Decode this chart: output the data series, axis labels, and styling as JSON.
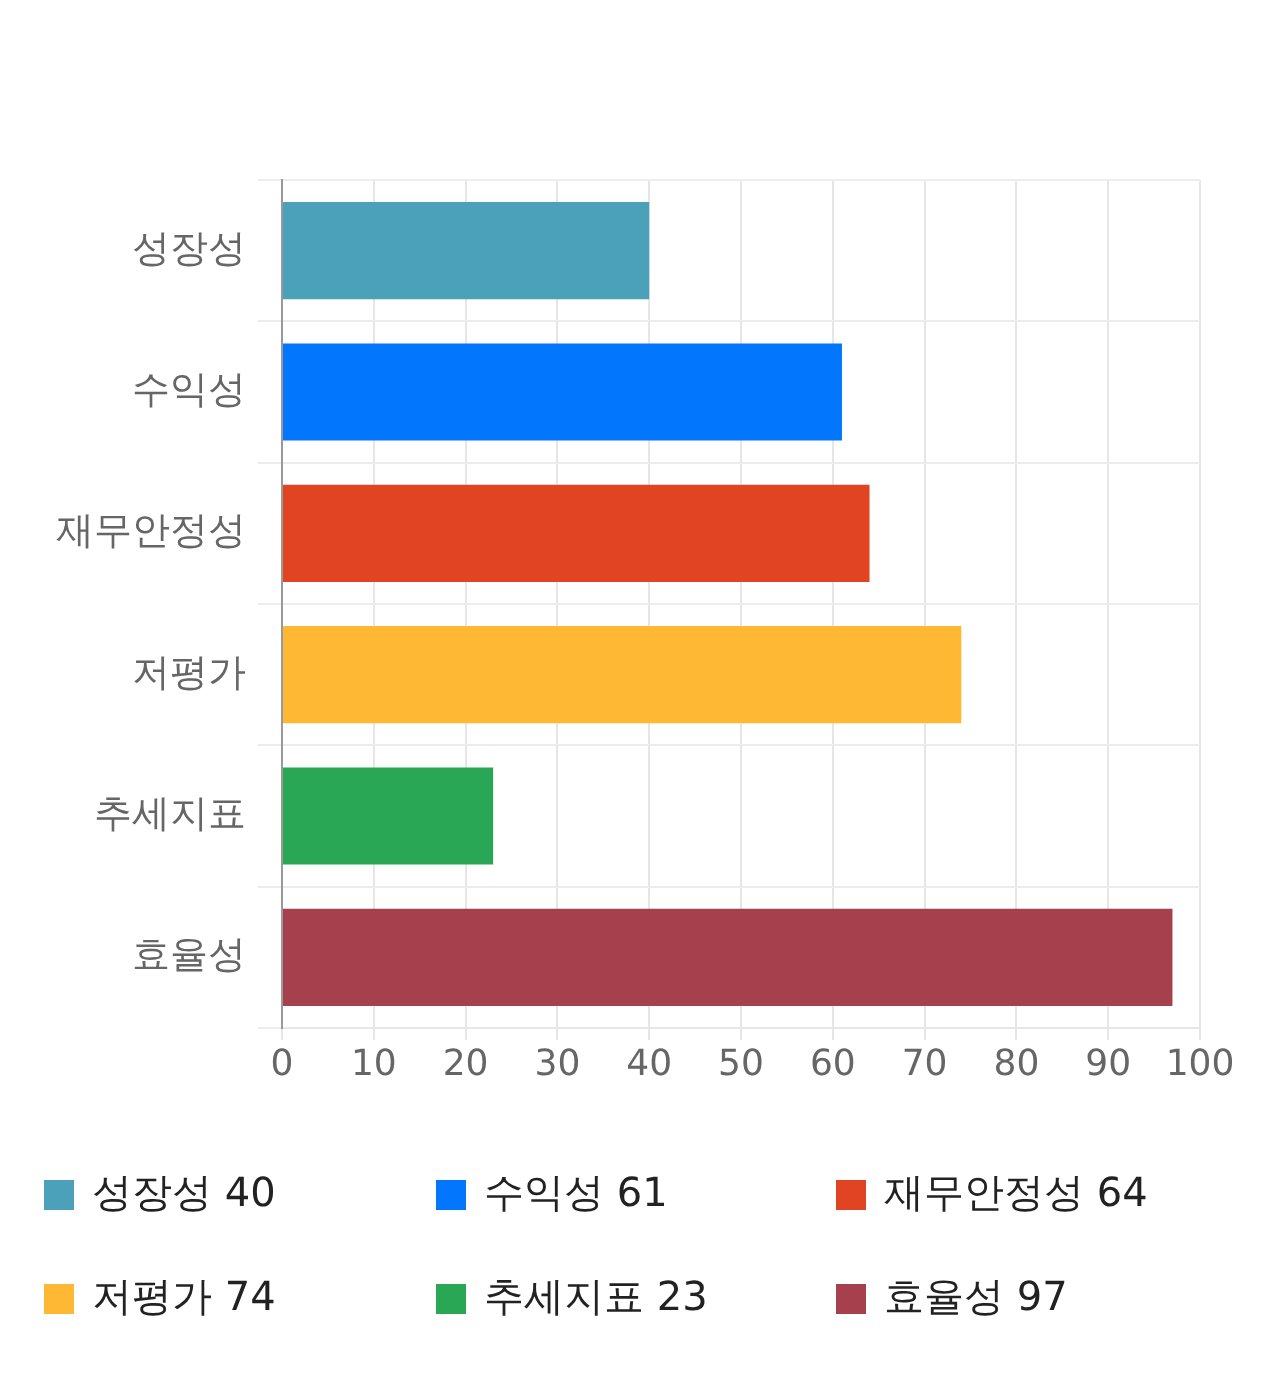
{
  "chart_data": {
    "type": "bar",
    "orientation": "horizontal",
    "categories": [
      "성장성",
      "수익성",
      "재무안정성",
      "저평가",
      "추세지표",
      "효율성"
    ],
    "series": [
      {
        "name": "성장성 40",
        "color": "#4aa1b9",
        "values": [
          40,
          null,
          null,
          null,
          null,
          null
        ]
      },
      {
        "name": "수익성 61",
        "color": "#0277fe",
        "values": [
          null,
          61,
          null,
          null,
          null,
          null
        ]
      },
      {
        "name": "재무안정성 64",
        "color": "#e14422",
        "values": [
          null,
          null,
          64,
          null,
          null,
          null
        ]
      },
      {
        "name": "저평가 74",
        "color": "#feb833",
        "values": [
          null,
          null,
          null,
          74,
          null,
          null
        ]
      },
      {
        "name": "추세지표 23",
        "color": "#29a755",
        "values": [
          null,
          null,
          null,
          null,
          23,
          null
        ]
      },
      {
        "name": "효율성 97",
        "color": "#a6404d",
        "values": [
          null,
          null,
          null,
          null,
          null,
          97
        ]
      }
    ],
    "xlim": [
      0,
      100
    ],
    "xticks": [
      0,
      10,
      20,
      30,
      40,
      50,
      60,
      70,
      80,
      90,
      100
    ],
    "grid": true,
    "legend": "bottom"
  }
}
